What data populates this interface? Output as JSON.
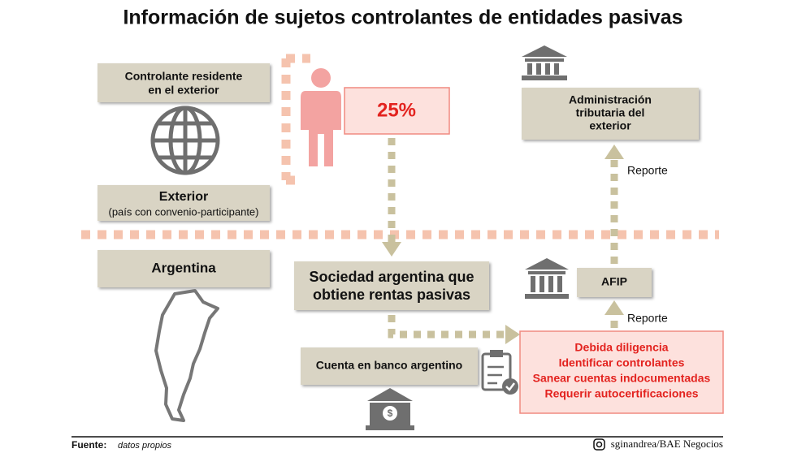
{
  "header": {
    "title": "Información de sujetos controlantes de entidades pasivas"
  },
  "nodes": {
    "controlante": {
      "lines": [
        "Controlante residente",
        "en el exterior"
      ]
    },
    "percent": {
      "label": "25%"
    },
    "exterior": {
      "label": "Exterior",
      "note": "(país con convenio-participante)"
    },
    "argentina": {
      "label": "Argentina"
    },
    "sociedad": {
      "lines": [
        "Sociedad argentina que",
        "obtiene rentas pasivas"
      ]
    },
    "cuenta": {
      "label": "Cuenta en banco argentino"
    },
    "administracion": {
      "lines": [
        "Administración",
        "tributaria del",
        "exterior"
      ]
    },
    "afip": {
      "label": "AFIP"
    },
    "obligaciones": {
      "lines": [
        "Debida diligencia",
        "Identificar controlantes",
        "Sanear cuentas indocumentadas",
        "Requerir autocertificaciones"
      ]
    }
  },
  "edges": {
    "reporte_afip": "Reporte",
    "reporte_exterior": "Reporte"
  },
  "footer": {
    "source_label": "Fuente:",
    "source": "datos propios",
    "credit": "sginandrea/BAE Negocios"
  }
}
